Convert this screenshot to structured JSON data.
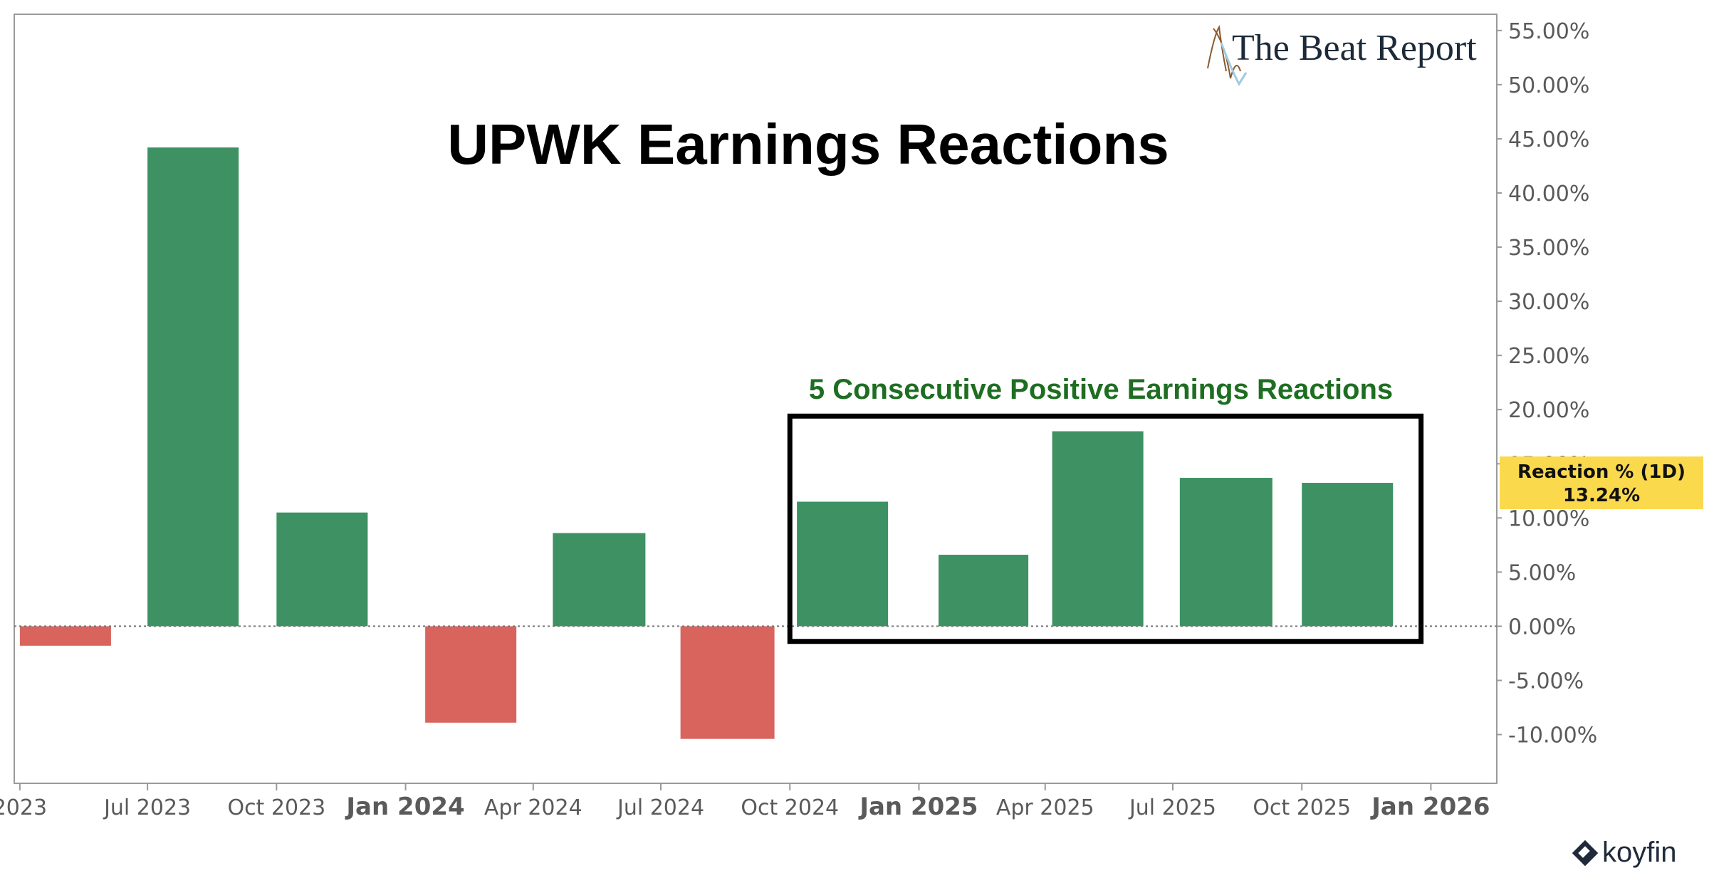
{
  "chart_data": {
    "type": "bar",
    "title": "UPWK Earnings Reactions",
    "annotation": "5 Consecutive Positive Earnings Reactions",
    "x_tick_labels": [
      {
        "label": "2023",
        "date": "2023-04-01",
        "bold": false
      },
      {
        "label": "Jul 2023",
        "date": "2023-07-01",
        "bold": false
      },
      {
        "label": "Oct 2023",
        "date": "2023-10-01",
        "bold": false
      },
      {
        "label": "Jan 2024",
        "date": "2024-01-01",
        "bold": true
      },
      {
        "label": "Apr 2024",
        "date": "2024-04-01",
        "bold": false
      },
      {
        "label": "Jul 2024",
        "date": "2024-07-01",
        "bold": false
      },
      {
        "label": "Oct 2024",
        "date": "2024-10-01",
        "bold": false
      },
      {
        "label": "Jan 2025",
        "date": "2025-01-01",
        "bold": true
      },
      {
        "label": "Apr 2025",
        "date": "2025-04-01",
        "bold": false
      },
      {
        "label": "Jul 2025",
        "date": "2025-07-01",
        "bold": false
      },
      {
        "label": "Oct 2025",
        "date": "2025-10-01",
        "bold": false
      },
      {
        "label": "Jan 2026",
        "date": "2026-01-01",
        "bold": true
      }
    ],
    "x_range": [
      "2023-03-28",
      "2026-02-17"
    ],
    "ylim": [
      -14.5,
      56.5
    ],
    "y_ticks": [
      -10,
      -5,
      0,
      5,
      10,
      15,
      20,
      25,
      30,
      35,
      40,
      45,
      50,
      55
    ],
    "y_tick_format": "%",
    "grid": false,
    "series": [
      {
        "name": "Reaction % (1D)",
        "points": [
          {
            "start": "2023-04-01",
            "end": "2023-06-05",
            "value": -1.8
          },
          {
            "start": "2023-07-01",
            "end": "2023-09-04",
            "value": 44.2
          },
          {
            "start": "2023-10-01",
            "end": "2023-12-05",
            "value": 10.5
          },
          {
            "start": "2024-01-15",
            "end": "2024-03-20",
            "value": -8.9
          },
          {
            "start": "2024-04-15",
            "end": "2024-06-20",
            "value": 8.6
          },
          {
            "start": "2024-07-15",
            "end": "2024-09-20",
            "value": -10.4
          },
          {
            "start": "2024-10-06",
            "end": "2024-12-10",
            "value": 11.5
          },
          {
            "start": "2025-01-15",
            "end": "2025-03-20",
            "value": 6.6
          },
          {
            "start": "2025-04-06",
            "end": "2025-06-10",
            "value": 18.0
          },
          {
            "start": "2025-07-06",
            "end": "2025-09-10",
            "value": 13.7
          },
          {
            "start": "2025-10-01",
            "end": "2025-12-05",
            "value": 13.24
          }
        ]
      }
    ],
    "highlight_box": {
      "start": "2024-10-01",
      "end": "2025-12-25",
      "y_min": -1.4,
      "y_max": 19.4
    },
    "last_value_label": {
      "name": "Reaction % (1D)",
      "value": "13.24%",
      "y": 13.24
    },
    "colors": {
      "positive": "#3d9163",
      "negative": "#d9645d",
      "annotation": "#1e6e22",
      "badge": "#fbd94d",
      "axis_text": "#5a5a5a",
      "title": "#000000"
    }
  },
  "branding": {
    "publication": "The Beat Report",
    "data_source": "koyfin"
  }
}
